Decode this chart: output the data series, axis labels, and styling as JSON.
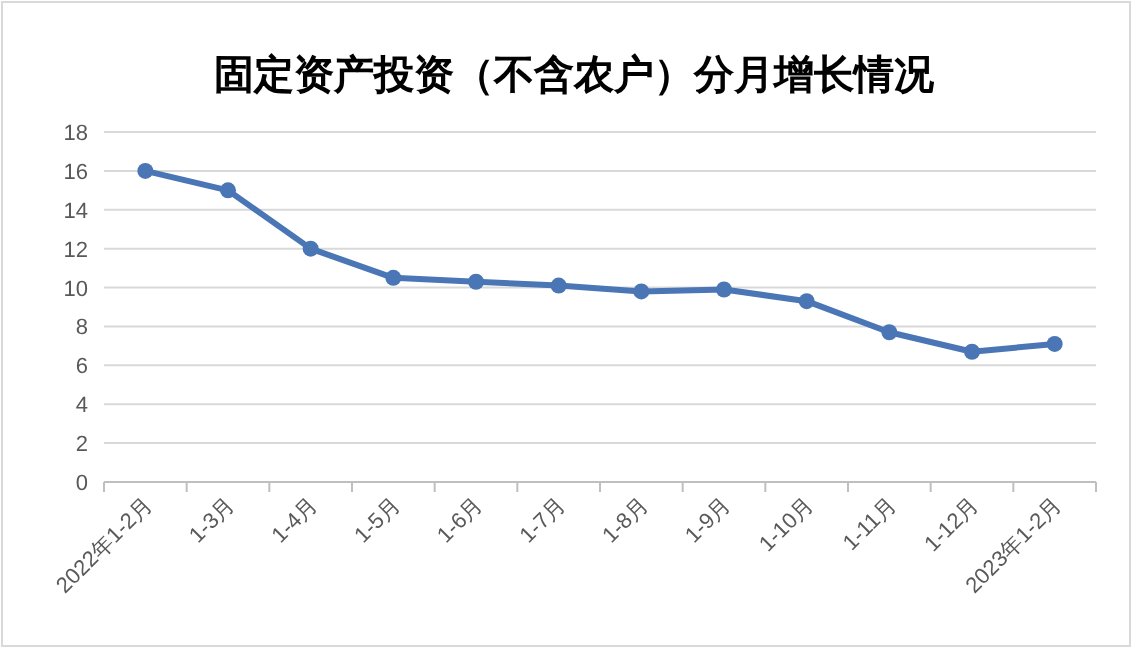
{
  "chart_data": {
    "type": "line",
    "title": "固定资产投资（不含农户）分月增长情况",
    "categories": [
      "2022年1-2月",
      "1-3月",
      "1-4月",
      "1-5月",
      "1-6月",
      "1-7月",
      "1-8月",
      "1-9月",
      "1-10月",
      "1-11月",
      "1-12月",
      "2023年1-2月"
    ],
    "series": [
      {
        "color": "#4a76b5",
        "values": [
          16,
          15,
          12,
          10.5,
          10.3,
          10.1,
          9.8,
          9.9,
          9.3,
          7.7,
          6.7,
          7.1
        ]
      }
    ],
    "ylim": [
      0,
      18
    ],
    "yticks": [
      0,
      2,
      4,
      6,
      8,
      10,
      12,
      14,
      16,
      18
    ],
    "grid": "y",
    "marker": "circle",
    "line_style": "solid"
  }
}
